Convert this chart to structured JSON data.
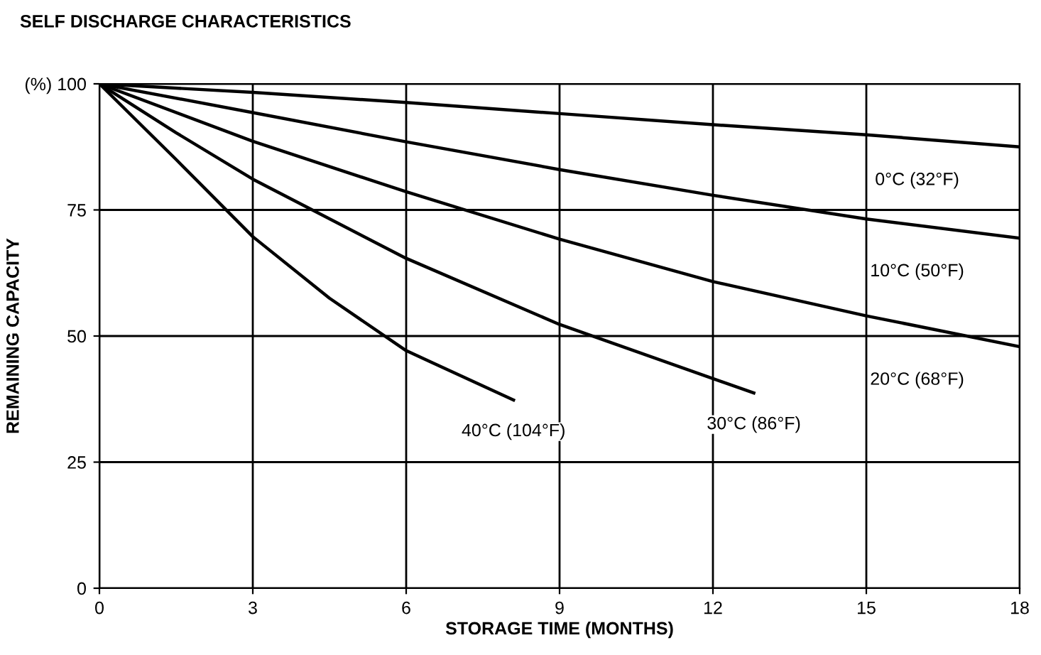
{
  "chart_data": {
    "type": "line",
    "title": "SELF DISCHARGE CHARACTERISTICS",
    "xlabel": "STORAGE TIME (MONTHS)",
    "ylabel": "REMAINING CAPACITY",
    "xlim": [
      0,
      18
    ],
    "xticks": [
      0,
      3,
      6,
      9,
      12,
      15,
      18
    ],
    "ylim": [
      0,
      100
    ],
    "yticks": [
      0,
      25,
      50,
      75,
      {
        "value": 100,
        "label": "(%) 100"
      }
    ],
    "grid": true,
    "marker": "none",
    "line_style": "solid",
    "series": [
      {
        "name": "0°C (32°F)",
        "color": "#000000",
        "x": [
          0,
          3,
          6,
          9,
          12,
          15,
          18
        ],
        "values": [
          100,
          98.3,
          96.3,
          94.1,
          91.9,
          89.9,
          87.5
        ]
      },
      {
        "name": "10°C (50°F)",
        "color": "#000000",
        "x": [
          0,
          3,
          6,
          9,
          12,
          15,
          18
        ],
        "values": [
          100,
          94.3,
          88.5,
          83.0,
          77.9,
          73.2,
          69.4
        ]
      },
      {
        "name": "20°C (68°F)",
        "color": "#000000",
        "x": [
          0,
          3,
          6,
          9,
          12,
          15,
          18
        ],
        "values": [
          100,
          88.6,
          78.6,
          69.2,
          60.8,
          54.0,
          47.9
        ]
      },
      {
        "name": "30°C (86°F)",
        "color": "#000000",
        "x": [
          0,
          1.5,
          3,
          6,
          9,
          12.8
        ],
        "values": [
          100,
          90.3,
          81.1,
          65.4,
          52.3,
          38.7
        ]
      },
      {
        "name": "40°C (104°F)",
        "color": "#000000",
        "x": [
          0,
          1.5,
          3,
          4.5,
          6,
          8.1
        ],
        "values": [
          100,
          85,
          69.7,
          57.5,
          47.1,
          37.3
        ]
      }
    ]
  }
}
